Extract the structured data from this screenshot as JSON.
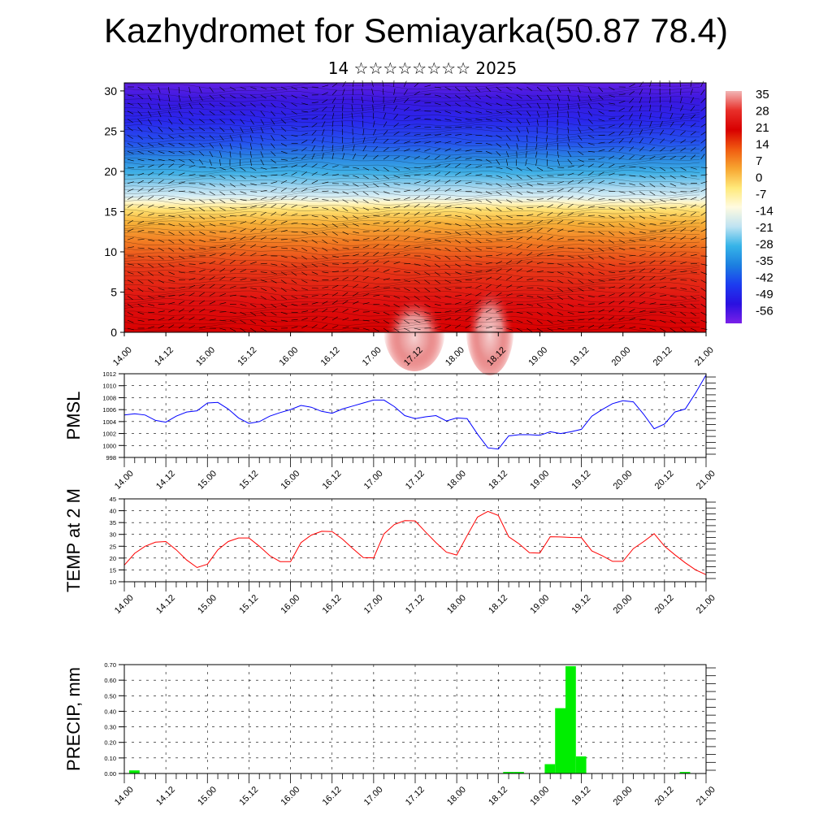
{
  "page": {
    "title": "Kazhydromet for Semiayarka(50.87 78.4)",
    "subtitle": "14 ☆☆☆☆☆☆☆☆ 2025"
  },
  "colors": {
    "pmsl_line": "#0000ff",
    "temp_line": "#ff0000",
    "precip_bar": "#00ee00",
    "colorbar_stops": [
      "#f2b6b6",
      "#e8302a",
      "#d80000",
      "#f05a10",
      "#f7a530",
      "#ffe97a",
      "#fffbe0",
      "#bfe3f2",
      "#36b4e8",
      "#1c7fe0",
      "#1c3cf0",
      "#2a10e0",
      "#7a20e8"
    ]
  },
  "colorbar": {
    "labels": [
      "35",
      "28",
      "21",
      "14",
      "7",
      "0",
      "-7",
      "-14",
      "-21",
      "-28",
      "-35",
      "-42",
      "-49",
      "-56"
    ]
  },
  "x_tick_labels": [
    "14.00",
    "14.12",
    "15.00",
    "15.12",
    "16.00",
    "16.12",
    "17.00",
    "17.12",
    "18.00",
    "18.12",
    "19.00",
    "19.12",
    "20.00",
    "20.12",
    "21.00"
  ],
  "chart_data": [
    {
      "type": "heatmap",
      "description_text": "",
      "y_ticks": [
        "0",
        "5",
        "10",
        "15",
        "20",
        "25",
        "30"
      ],
      "ylim": [
        0,
        31
      ],
      "xlabel": "",
      "ylabel": ""
    },
    {
      "type": "line",
      "ylabel": "PMSL",
      "ylim": [
        998,
        1012
      ],
      "y_ticks": [
        "998",
        "1000",
        "1002",
        "1004",
        "1006",
        "1008",
        "1010",
        "1012"
      ],
      "x": [
        0,
        3,
        6,
        9,
        12,
        15,
        18,
        21,
        24,
        27,
        30,
        33,
        36,
        39,
        42,
        45,
        48,
        51,
        54,
        57,
        60,
        63,
        66,
        69,
        72,
        75,
        78,
        81,
        84,
        87,
        90,
        93,
        96,
        99,
        102,
        105,
        108,
        111,
        114,
        117,
        120,
        123,
        126,
        129,
        132,
        135,
        138,
        141,
        144,
        147,
        150,
        153,
        156,
        159,
        162,
        165,
        168
      ],
      "values": [
        1005.1,
        1005.3,
        1005.1,
        1004.2,
        1003.9,
        1004.9,
        1005.6,
        1005.8,
        1007.1,
        1007.2,
        1006.1,
        1004.6,
        1003.7,
        1004.0,
        1004.9,
        1005.5,
        1006.0,
        1006.7,
        1006.4,
        1005.7,
        1005.4,
        1006.1,
        1006.6,
        1007.1,
        1007.6,
        1007.6,
        1006.5,
        1005.0,
        1004.5,
        1004.8,
        1005.0,
        1004.1,
        1004.6,
        1004.5,
        1001.9,
        999.6,
        999.4,
        1001.6,
        1001.8,
        1001.8,
        1001.7,
        1002.3,
        1002.0,
        1002.3,
        1002.7,
        1004.9,
        1006.0,
        1007.0,
        1007.5,
        1007.3,
        1005.2,
        1002.8,
        1003.6,
        1005.6,
        1006.1,
        1008.8,
        1011.8
      ]
    },
    {
      "type": "line",
      "ylabel": "TEMP at 2 M",
      "ylim": [
        10,
        45
      ],
      "y_ticks": [
        "10",
        "15",
        "20",
        "25",
        "30",
        "35",
        "40",
        "45"
      ],
      "x": [
        0,
        3,
        6,
        9,
        12,
        15,
        18,
        21,
        24,
        27,
        30,
        33,
        36,
        39,
        42,
        45,
        48,
        51,
        54,
        57,
        60,
        63,
        66,
        69,
        72,
        75,
        78,
        81,
        84,
        87,
        90,
        93,
        96,
        99,
        102,
        105,
        108,
        111,
        114,
        117,
        120,
        123,
        126,
        129,
        132,
        135,
        138,
        141,
        144,
        147,
        150,
        153,
        156,
        159,
        162,
        165,
        168
      ],
      "values": [
        17,
        22,
        25,
        26.7,
        27,
        23.5,
        19.2,
        16,
        17.4,
        23.5,
        27,
        28.5,
        28.5,
        25,
        21,
        18.5,
        18.5,
        26.5,
        29.7,
        31.3,
        31.2,
        28,
        24,
        20.2,
        20.1,
        30.2,
        34.2,
        35.8,
        35.7,
        31,
        26.5,
        22.5,
        21.3,
        29.5,
        37.3,
        39.7,
        38,
        29,
        26,
        22.3,
        22.1,
        29,
        28.9,
        28.7,
        28.6,
        23,
        21,
        18.6,
        18.6,
        24,
        27,
        30.3,
        25,
        21.4,
        18,
        15,
        13
      ]
    },
    {
      "type": "bar",
      "ylabel": "PRECIP, mm",
      "ylim": [
        0,
        0.7
      ],
      "y_ticks": [
        "0.00",
        "0.10",
        "0.20",
        "0.30",
        "0.40",
        "0.50",
        "0.60",
        "0.70"
      ],
      "bar_width_hours": 3,
      "x": [
        0,
        108,
        111,
        120,
        123,
        126,
        129,
        159
      ],
      "values": [
        0.02,
        0.01,
        0.01,
        0.06,
        0.42,
        0.69,
        0.11,
        0.01
      ]
    }
  ]
}
